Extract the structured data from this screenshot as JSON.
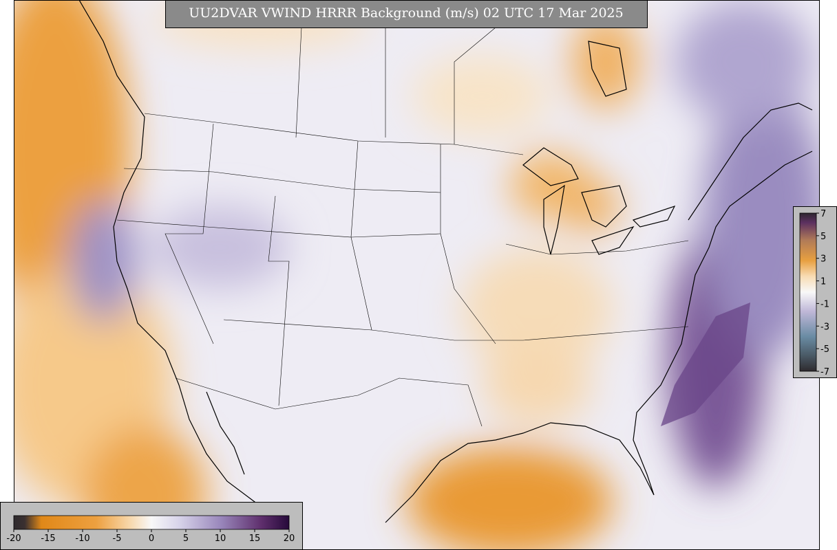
{
  "title": "UU2DVAR VWIND HRRR Background (m/s) 02 UTC 17 Mar 2025",
  "colorbar_bottom": {
    "ticks": [
      -20,
      -15,
      -10,
      -5,
      0,
      5,
      10,
      15,
      20
    ]
  },
  "colorbar_right": {
    "ticks": [
      7,
      5,
      3,
      1,
      -1,
      -3,
      -5,
      -7
    ]
  }
}
